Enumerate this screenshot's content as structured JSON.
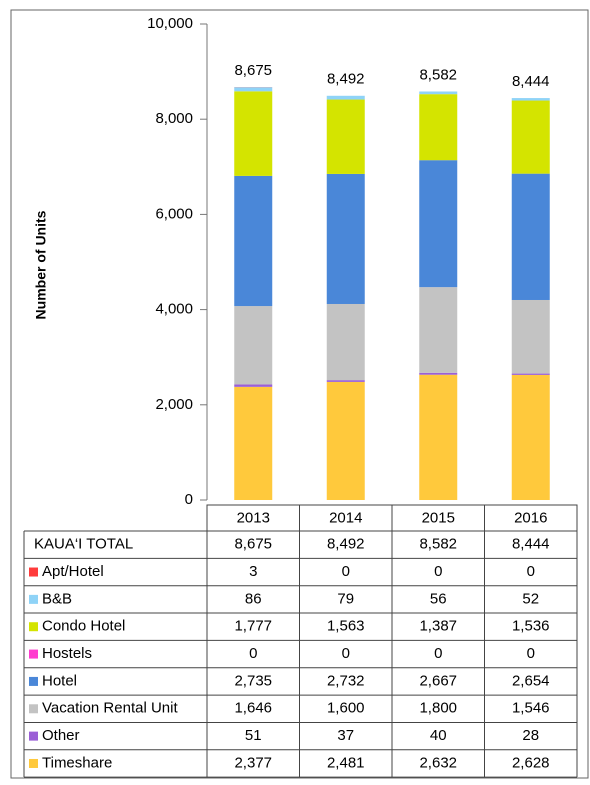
{
  "chart_data": {
    "type": "stacked_bar",
    "y_label": "Number of Units",
    "categories": [
      "2013",
      "2014",
      "2015",
      "2016"
    ],
    "ylim": [
      0,
      10000
    ],
    "yticks": [
      0,
      {
        "value": 2000,
        "label": "2,000"
      },
      {
        "value": 4000,
        "label": "4,000"
      },
      {
        "value": 6000,
        "label": "6,000"
      },
      {
        "value": 8000,
        "label": "8,000"
      },
      {
        "value": 10000,
        "label": "10,000"
      }
    ],
    "total": {
      "name": "KAUA‘I TOTAL",
      "values": [
        8675,
        8492,
        8582,
        8444
      ],
      "value_labels": [
        "8,675",
        "8,492",
        "8,582",
        "8,444"
      ]
    },
    "series": [
      {
        "name": "Apt/Hotel",
        "color": "#ff3b3b",
        "values": [
          3,
          0,
          0,
          0
        ]
      },
      {
        "name": "B&B",
        "color": "#8fd3f7",
        "values": [
          86,
          79,
          56,
          52
        ]
      },
      {
        "name": "Condo Hotel",
        "color": "#d4e400",
        "values": [
          1777,
          1563,
          1387,
          1536
        ],
        "value_labels": [
          "1,777",
          "1,563",
          "1,387",
          "1,536"
        ]
      },
      {
        "name": "Hostels",
        "color": "#ff3ccf",
        "values": [
          0,
          0,
          0,
          0
        ]
      },
      {
        "name": "Hotel",
        "color": "#4a87d8",
        "values": [
          2735,
          2732,
          2667,
          2654
        ],
        "value_labels": [
          "2,735",
          "2,732",
          "2,667",
          "2,654"
        ]
      },
      {
        "name": "Vacation Rental Unit",
        "color": "#c3c3c3",
        "values": [
          1646,
          1600,
          1800,
          1546
        ],
        "value_labels": [
          "1,646",
          "1,600",
          "1,800",
          "1,546"
        ]
      },
      {
        "name": "Other",
        "color": "#9b5fd6",
        "values": [
          51,
          37,
          40,
          28
        ]
      },
      {
        "name": "Timeshare",
        "color": "#ffc93c",
        "values": [
          2377,
          2481,
          2632,
          2628
        ],
        "value_labels": [
          "2,377",
          "2,481",
          "2,632",
          "2,628"
        ]
      }
    ]
  }
}
